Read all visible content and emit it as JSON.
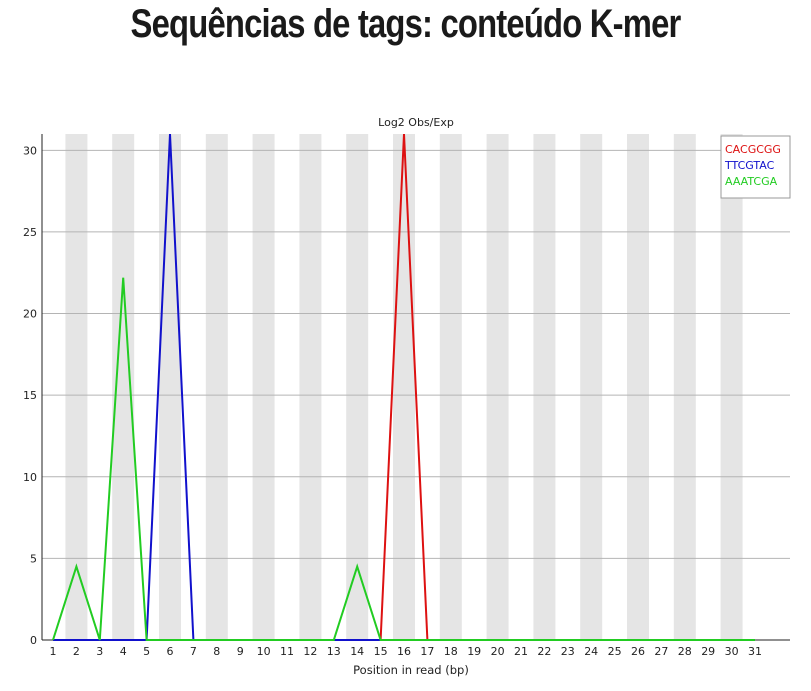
{
  "slide": {
    "title": "Sequências de tags: conteúdo K-mer"
  },
  "chart_data": {
    "type": "line",
    "title": "Log2 Obs/Exp",
    "xlabel": "Position in read (bp)",
    "ylabel": "",
    "x": [
      1,
      2,
      3,
      4,
      5,
      6,
      7,
      8,
      9,
      10,
      11,
      12,
      13,
      14,
      15,
      16,
      17,
      18,
      19,
      20,
      21,
      22,
      23,
      24,
      25,
      26,
      27,
      28,
      29,
      30,
      31
    ],
    "ylim": [
      0,
      31
    ],
    "yticks": [
      0,
      5,
      10,
      15,
      20,
      25,
      30
    ],
    "grid": true,
    "legend_position": "top-right",
    "series": [
      {
        "name": "CACGCGG",
        "color": "#dd1111",
        "values": [
          0,
          0,
          0,
          0,
          0,
          0,
          0,
          0,
          0,
          0,
          0,
          0,
          0,
          0,
          0,
          31,
          0,
          0,
          0,
          0,
          0,
          0,
          0,
          0,
          0,
          0,
          0,
          0,
          0,
          0,
          0
        ]
      },
      {
        "name": "TTCGTAC",
        "color": "#1111cc",
        "values": [
          0,
          0,
          0,
          0,
          0,
          31,
          0,
          0,
          0,
          0,
          0,
          0,
          0,
          0,
          0,
          0,
          0,
          0,
          0,
          0,
          0,
          0,
          0,
          0,
          0,
          0,
          0,
          0,
          0,
          0,
          0
        ]
      },
      {
        "name": "AAATCGA",
        "color": "#22cc22",
        "values": [
          0,
          4.5,
          0,
          22.2,
          0,
          0,
          0,
          0,
          0,
          0,
          0,
          0,
          0,
          4.5,
          0,
          0,
          0,
          0,
          0,
          0,
          0,
          0,
          0,
          0,
          0,
          0,
          0,
          0,
          0,
          0,
          0
        ]
      }
    ]
  }
}
